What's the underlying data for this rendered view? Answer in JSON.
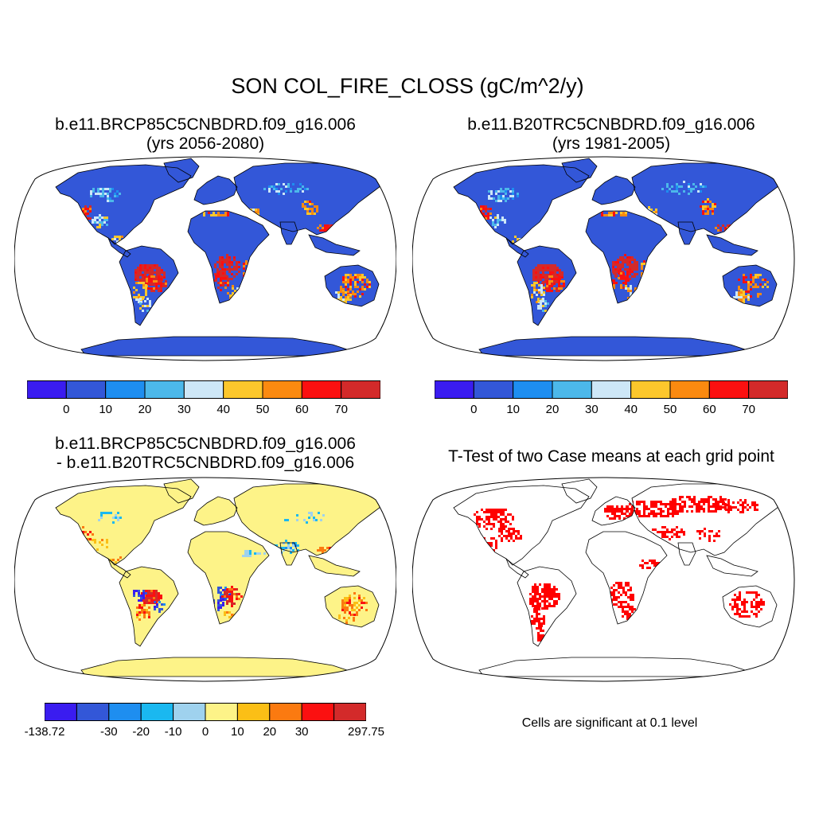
{
  "figure": {
    "title": "SON COL_FIRE_CLOSS (gC/m^2/y)"
  },
  "panels": [
    {
      "title_line1": "b.e11.BRCP85C5CNBDRD.f09_g16.006",
      "title_line2": "(yrs 2056-2080)"
    },
    {
      "title_line1": "b.e11.B20TRC5CNBDRD.f09_g16.006",
      "title_line2": "(yrs 1981-2005)"
    },
    {
      "title_line1": "b.e11.BRCP85C5CNBDRD.f09_g16.006",
      "title_line2": "- b.e11.B20TRC5CNBDRD.f09_g16.006"
    },
    {
      "title_line1": "T-Test of two Case means at each grid point",
      "note": "Cells are significant at 0.1 level"
    }
  ],
  "colorbars": {
    "case": {
      "colors": [
        "#3a1cf0",
        "#3357d8",
        "#1e8ef0",
        "#4cb8ea",
        "#cde7f7",
        "#fcc72c",
        "#fb8a10",
        "#fb1010",
        "#d32a2a"
      ],
      "labels": [
        "0",
        "10",
        "20",
        "30",
        "40",
        "50",
        "60",
        "70"
      ]
    },
    "diff": {
      "colors": [
        "#3a1cf0",
        "#3357d8",
        "#1e8ef0",
        "#1ab8f0",
        "#9fd2ee",
        "#fdf388",
        "#fbbf16",
        "#fb7a10",
        "#fb1010",
        "#d32a2a"
      ],
      "labels": [
        "-138.72",
        "-30",
        "-20",
        "-10",
        "0",
        "10",
        "20",
        "30",
        "297.75"
      ]
    }
  },
  "map_colors": {
    "base_case": "#3357d8",
    "base_diff": "#fdf388",
    "significant": "#ff0000",
    "coast": "#000000"
  }
}
